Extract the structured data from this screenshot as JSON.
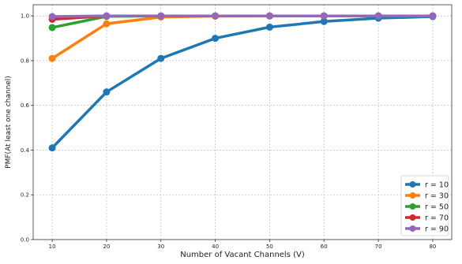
{
  "chart_data": {
    "type": "line",
    "title": "",
    "xlabel": "Number of Vacant Channels (V)",
    "ylabel": "PMF(At least one channel)",
    "x": [
      10,
      20,
      30,
      40,
      50,
      60,
      70,
      80
    ],
    "x_ticks": [
      10,
      20,
      30,
      40,
      50,
      60,
      70,
      80
    ],
    "y_ticks": [
      0.0,
      0.2,
      0.4,
      0.6,
      0.8,
      1.0
    ],
    "xlim": [
      6.5,
      83.5
    ],
    "ylim": [
      0.0,
      1.05
    ],
    "grid": true,
    "legend_position": "bottom-right",
    "series": [
      {
        "name": "r = 10",
        "color": "#1f77b4",
        "values": [
          0.41,
          0.66,
          0.81,
          0.9,
          0.95,
          0.975,
          0.99,
          0.997
        ]
      },
      {
        "name": "r = 30",
        "color": "#ff7f0e",
        "values": [
          0.81,
          0.965,
          0.995,
          0.999,
          1.0,
          1.0,
          1.0,
          1.0
        ]
      },
      {
        "name": "r = 50",
        "color": "#2ca02c",
        "values": [
          0.948,
          0.998,
          1.0,
          1.0,
          1.0,
          1.0,
          1.0,
          1.0
        ]
      },
      {
        "name": "r = 70",
        "color": "#d62728",
        "values": [
          0.985,
          1.0,
          1.0,
          1.0,
          1.0,
          1.0,
          1.0,
          1.0
        ]
      },
      {
        "name": "r = 90",
        "color": "#9467bd",
        "values": [
          0.997,
          1.0,
          1.0,
          1.0,
          1.0,
          1.0,
          1.0,
          1.0
        ]
      }
    ]
  }
}
